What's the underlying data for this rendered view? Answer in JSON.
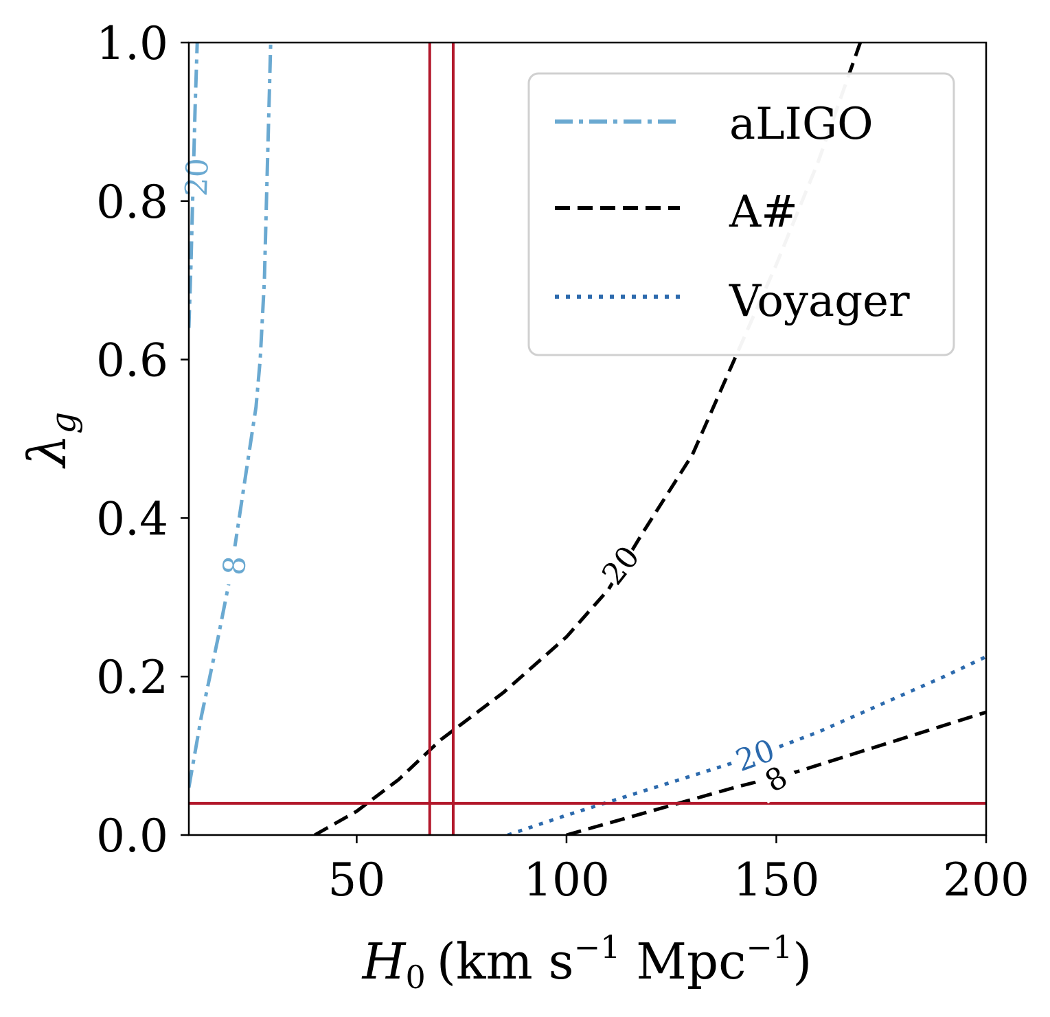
{
  "chart_data": {
    "type": "line",
    "title": "",
    "xlabel": {
      "main": "H",
      "sub": "0",
      "units": "(km s",
      "sup1": "−1",
      "mid": " Mpc",
      "sup2": "−1",
      "close": ")"
    },
    "ylabel": {
      "main": "λ",
      "sub": "g"
    },
    "xlim": [
      10,
      200
    ],
    "ylim": [
      0,
      1
    ],
    "xticks": [
      {
        "value": 50,
        "label": "50"
      },
      {
        "value": 100,
        "label": "100"
      },
      {
        "value": 150,
        "label": "150"
      },
      {
        "value": 200,
        "label": "200"
      }
    ],
    "yticks": [
      {
        "value": 0.0,
        "label": "0.0"
      },
      {
        "value": 0.2,
        "label": "0.2"
      },
      {
        "value": 0.4,
        "label": "0.4"
      },
      {
        "value": 0.6,
        "label": "0.6"
      },
      {
        "value": 0.8,
        "label": "0.8"
      },
      {
        "value": 1.0,
        "label": "1.0"
      }
    ],
    "series": [
      {
        "name": "aLIGO",
        "color": "#6aa9d1",
        "dash": "dashdot",
        "contours": [
          {
            "level": "8",
            "label_at": [
              21,
              0.34
            ],
            "label_rotation": -85,
            "points": [
              [
                10,
                0.06
              ],
              [
                11,
                0.09
              ],
              [
                12,
                0.12
              ],
              [
                13,
                0.15
              ],
              [
                15,
                0.2
              ],
              [
                17,
                0.25
              ],
              [
                20,
                0.33
              ],
              [
                22,
                0.4
              ],
              [
                24,
                0.47
              ],
              [
                26,
                0.54
              ],
              [
                27,
                0.6
              ],
              [
                28,
                0.7
              ],
              [
                28.5,
                0.8
              ],
              [
                29,
                0.9
              ],
              [
                29.5,
                1.0
              ]
            ]
          },
          {
            "level": "20",
            "label_at": [
              12,
              0.83
            ],
            "label_rotation": -88,
            "points": [
              [
                10,
                0.64
              ],
              [
                10.5,
                0.72
              ],
              [
                11,
                0.82
              ],
              [
                11.5,
                0.92
              ],
              [
                12,
                1.0
              ]
            ]
          }
        ]
      },
      {
        "name": "A#",
        "color": "#000000",
        "dash": "dashed",
        "contours": [
          {
            "level": "20",
            "label_at": [
              113,
              0.34
            ],
            "label_rotation": -52,
            "points": [
              [
                40,
                0.0
              ],
              [
                50,
                0.03
              ],
              [
                60,
                0.07
              ],
              [
                70,
                0.12
              ],
              [
                85,
                0.18
              ],
              [
                100,
                0.25
              ],
              [
                110,
                0.31
              ],
              [
                118,
                0.38
              ],
              [
                130,
                0.48
              ],
              [
                140,
                0.6
              ],
              [
                150,
                0.72
              ],
              [
                160,
                0.85
              ],
              [
                170,
                1.0
              ]
            ],
            "fade_from_y": 0.62
          },
          {
            "level": "8",
            "label_at": [
              150,
              0.07
            ],
            "label_rotation": -30,
            "points": [
              [
                100,
                0.0
              ],
              [
                120,
                0.03
              ],
              [
                140,
                0.06
              ],
              [
                155,
                0.08
              ],
              [
                170,
                0.105
              ],
              [
                185,
                0.13
              ],
              [
                200,
                0.155
              ]
            ]
          }
        ]
      },
      {
        "name": "Voyager",
        "color": "#2c6aad",
        "dash": "dotted",
        "contours": [
          {
            "level": "20",
            "label_at": [
              145,
              0.1
            ],
            "label_rotation": -20,
            "points": [
              [
                86,
                0.0
              ],
              [
                100,
                0.025
              ],
              [
                115,
                0.05
              ],
              [
                130,
                0.075
              ],
              [
                145,
                0.1
              ],
              [
                160,
                0.13
              ],
              [
                175,
                0.165
              ],
              [
                190,
                0.2
              ],
              [
                200,
                0.225
              ]
            ]
          }
        ]
      }
    ],
    "reference_lines": {
      "color": "#b2182b",
      "vertical_x": [
        67.4,
        73.0
      ],
      "horizontal_y": [
        0.04
      ]
    },
    "legend": {
      "position": "top-right",
      "entries": [
        "aLIGO",
        "A#",
        "Voyager"
      ]
    }
  }
}
